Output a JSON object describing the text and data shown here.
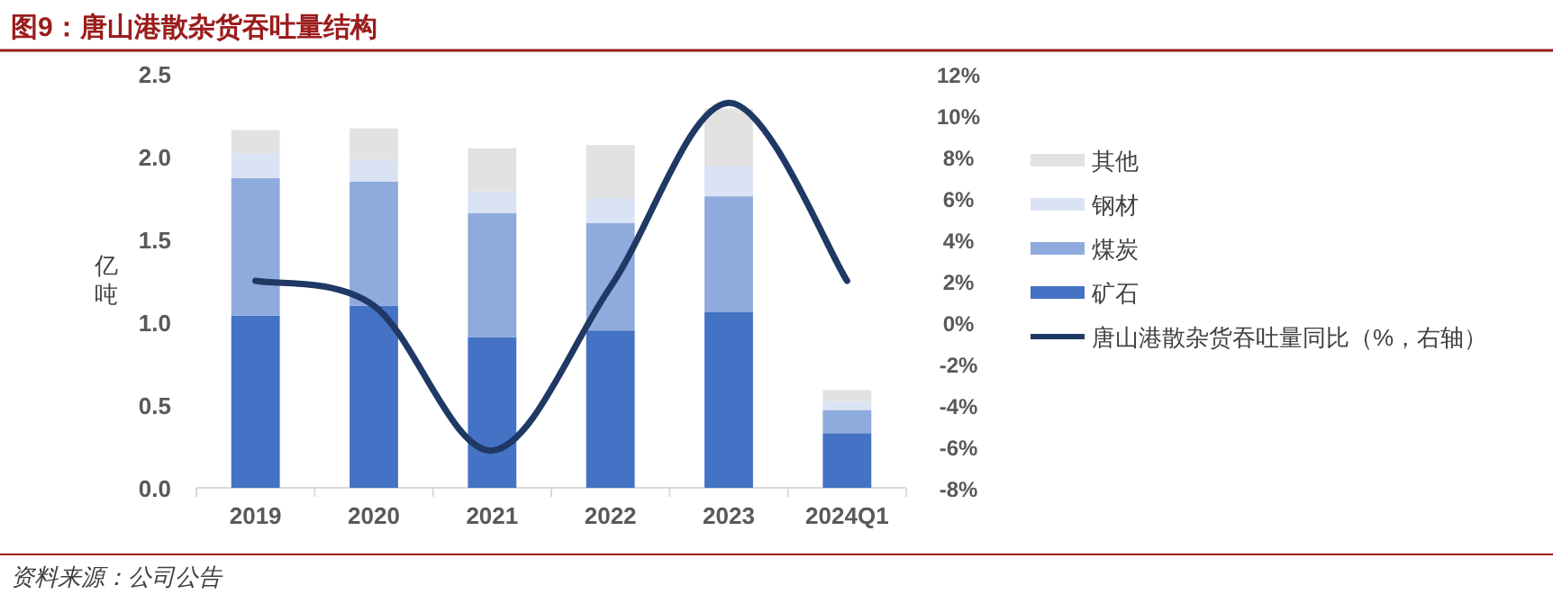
{
  "chart_data": {
    "type": "bar",
    "title": "图9：唐山港散杂货吞吐量结构",
    "ylabel": "亿吨",
    "categories": [
      "2019",
      "2020",
      "2021",
      "2022",
      "2023",
      "2024Q1"
    ],
    "stacked": true,
    "series": [
      {
        "name": "矿石",
        "color": "#4472c4",
        "values": [
          1.04,
          1.1,
          0.91,
          0.95,
          1.06,
          0.33
        ]
      },
      {
        "name": "煤炭",
        "color": "#8faadc",
        "values": [
          0.83,
          0.75,
          0.75,
          0.65,
          0.7,
          0.14
        ]
      },
      {
        "name": "钢材",
        "color": "#dae3f3",
        "values": [
          0.15,
          0.13,
          0.13,
          0.15,
          0.18,
          0.05
        ]
      },
      {
        "name": "其他",
        "color": "#e2e2e2",
        "values": [
          0.14,
          0.19,
          0.26,
          0.32,
          0.35,
          0.07
        ]
      },
      {
        "name": "唐山港散杂货吞吐量同比（%，右轴）",
        "type": "line",
        "axis": "y2",
        "color": "#1f3864",
        "values": [
          2.0,
          0.8,
          -6.2,
          1.7,
          10.6,
          2.0
        ]
      }
    ],
    "ylim": [
      0,
      2.5
    ],
    "yticks": [
      {
        "value": 0,
        "label": "0.0"
      },
      {
        "value": 0.5,
        "label": "0.5"
      },
      {
        "value": 1,
        "label": "1.0"
      },
      {
        "value": 1.5,
        "label": "1.5"
      },
      {
        "value": 2,
        "label": "2.0"
      },
      {
        "value": 2.5,
        "label": "2.5"
      }
    ],
    "y2lim": [
      -8,
      12
    ],
    "y2ticks": [
      {
        "value": -8,
        "label": "-8%"
      },
      {
        "value": -6,
        "label": "-6%"
      },
      {
        "value": -4,
        "label": "-4%"
      },
      {
        "value": -2,
        "label": "-2%"
      },
      {
        "value": 0,
        "label": "0%"
      },
      {
        "value": 2,
        "label": "2%"
      },
      {
        "value": 4,
        "label": "4%"
      },
      {
        "value": 6,
        "label": "6%"
      },
      {
        "value": 8,
        "label": "8%"
      },
      {
        "value": 10,
        "label": "10%"
      },
      {
        "value": 12,
        "label": "12%"
      }
    ],
    "legend": "right",
    "marker": "none",
    "line_style": "solid",
    "grid": false,
    "annotations": [
      "资料来源：公司公告"
    ]
  }
}
